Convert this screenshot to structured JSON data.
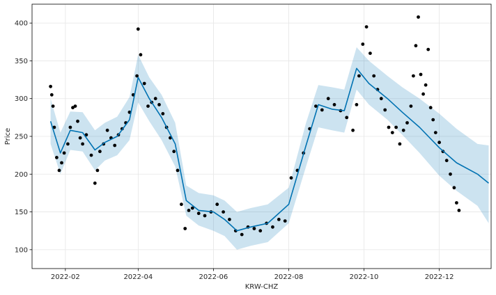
{
  "chart_data": {
    "type": "line",
    "title": "",
    "xlabel": "KRW-CHZ",
    "ylabel": "Price",
    "x_ticks": [
      "2022-02",
      "2022-04",
      "2022-06",
      "2022-08",
      "2022-10",
      "2022-12"
    ],
    "y_ticks": [
      100,
      150,
      200,
      250,
      300,
      350,
      400
    ],
    "xlim": [
      "2022-01-05",
      "2023-01-12"
    ],
    "ylim": [
      75,
      425
    ],
    "grid": true,
    "legend": "none",
    "colors": {
      "forecast_line": "#0072B2",
      "uncertainty_band": "#0072B2",
      "observations": "#000000",
      "grid": "#e6e6e6"
    },
    "series": [
      {
        "kind": "forecast",
        "x": [
          "2022-01-20",
          "2022-01-28",
          "2022-02-05",
          "2022-02-15",
          "2022-02-25",
          "2022-03-05",
          "2022-03-15",
          "2022-03-25",
          "2022-04-01",
          "2022-04-10",
          "2022-04-20",
          "2022-05-01",
          "2022-05-10",
          "2022-05-20",
          "2022-06-01",
          "2022-06-10",
          "2022-06-20",
          "2022-07-01",
          "2022-07-15",
          "2022-08-01",
          "2022-08-15",
          "2022-08-25",
          "2022-09-05",
          "2022-09-15",
          "2022-09-25",
          "2022-10-05",
          "2022-10-20",
          "2022-11-01",
          "2022-11-15",
          "2022-12-01",
          "2022-12-15",
          "2023-01-01",
          "2023-01-10"
        ],
        "y": [
          270,
          228,
          258,
          255,
          232,
          242,
          250,
          272,
          328,
          300,
          275,
          240,
          165,
          152,
          150,
          140,
          125,
          130,
          135,
          160,
          238,
          292,
          286,
          284,
          340,
          320,
          300,
          282,
          262,
          235,
          215,
          200,
          188
        ]
      },
      {
        "kind": "uncertainty",
        "x": [
          "2022-01-20",
          "2022-01-28",
          "2022-02-05",
          "2022-02-15",
          "2022-02-25",
          "2022-03-05",
          "2022-03-15",
          "2022-03-25",
          "2022-04-01",
          "2022-04-10",
          "2022-04-20",
          "2022-05-01",
          "2022-05-10",
          "2022-05-20",
          "2022-06-01",
          "2022-06-10",
          "2022-06-20",
          "2022-07-01",
          "2022-07-15",
          "2022-08-01",
          "2022-08-15",
          "2022-08-25",
          "2022-09-05",
          "2022-09-15",
          "2022-09-25",
          "2022-10-05",
          "2022-10-20",
          "2022-11-01",
          "2022-11-15",
          "2022-12-01",
          "2022-12-15",
          "2023-01-01",
          "2023-01-10"
        ],
        "upper": [
          300,
          255,
          283,
          282,
          258,
          268,
          276,
          302,
          358,
          328,
          305,
          268,
          185,
          175,
          172,
          165,
          150,
          155,
          160,
          182,
          268,
          318,
          315,
          312,
          368,
          350,
          330,
          315,
          300,
          280,
          260,
          240,
          238
        ],
        "lower": [
          240,
          200,
          232,
          230,
          205,
          218,
          225,
          245,
          295,
          270,
          245,
          210,
          145,
          132,
          125,
          118,
          100,
          105,
          110,
          135,
          210,
          262,
          258,
          255,
          312,
          292,
          272,
          252,
          228,
          198,
          178,
          158,
          135
        ]
      },
      {
        "kind": "observed",
        "x": [
          "2022-01-20",
          "2022-01-21",
          "2022-01-22",
          "2022-01-23",
          "2022-01-25",
          "2022-01-27",
          "2022-01-29",
          "2022-01-31",
          "2022-02-03",
          "2022-02-05",
          "2022-02-07",
          "2022-02-09",
          "2022-02-11",
          "2022-02-13",
          "2022-02-15",
          "2022-02-18",
          "2022-02-22",
          "2022-02-25",
          "2022-02-27",
          "2022-03-01",
          "2022-03-04",
          "2022-03-07",
          "2022-03-10",
          "2022-03-13",
          "2022-03-16",
          "2022-03-19",
          "2022-03-22",
          "2022-03-25",
          "2022-03-28",
          "2022-03-31",
          "2022-04-01",
          "2022-04-03",
          "2022-04-06",
          "2022-04-09",
          "2022-04-12",
          "2022-04-15",
          "2022-04-18",
          "2022-04-21",
          "2022-04-24",
          "2022-04-27",
          "2022-04-30",
          "2022-05-03",
          "2022-05-06",
          "2022-05-09",
          "2022-05-12",
          "2022-05-15",
          "2022-05-20",
          "2022-05-25",
          "2022-05-30",
          "2022-06-04",
          "2022-06-09",
          "2022-06-14",
          "2022-06-19",
          "2022-06-24",
          "2022-06-29",
          "2022-07-04",
          "2022-07-09",
          "2022-07-14",
          "2022-07-19",
          "2022-07-24",
          "2022-07-29",
          "2022-08-03",
          "2022-08-08",
          "2022-08-13",
          "2022-08-18",
          "2022-08-23",
          "2022-08-28",
          "2022-09-02",
          "2022-09-07",
          "2022-09-12",
          "2022-09-17",
          "2022-09-22",
          "2022-09-25",
          "2022-09-27",
          "2022-09-30",
          "2022-10-03",
          "2022-10-06",
          "2022-10-09",
          "2022-10-12",
          "2022-10-15",
          "2022-10-18",
          "2022-10-21",
          "2022-10-24",
          "2022-10-27",
          "2022-10-30",
          "2022-11-02",
          "2022-11-05",
          "2022-11-08",
          "2022-11-10",
          "2022-11-12",
          "2022-11-14",
          "2022-11-16",
          "2022-11-18",
          "2022-11-20",
          "2022-11-22",
          "2022-11-24",
          "2022-11-26",
          "2022-11-28",
          "2022-12-01",
          "2022-12-04",
          "2022-12-07",
          "2022-12-10",
          "2022-12-13",
          "2022-12-15",
          "2022-12-17"
        ],
        "y": [
          316,
          305,
          290,
          262,
          222,
          205,
          215,
          228,
          240,
          262,
          288,
          290,
          270,
          248,
          240,
          252,
          225,
          188,
          205,
          230,
          240,
          258,
          248,
          238,
          252,
          260,
          268,
          282,
          305,
          330,
          392,
          358,
          320,
          290,
          295,
          300,
          292,
          280,
          262,
          248,
          230,
          205,
          160,
          128,
          152,
          155,
          148,
          145,
          150,
          160,
          150,
          140,
          125,
          120,
          130,
          128,
          125,
          135,
          130,
          140,
          138,
          195,
          205,
          228,
          260,
          290,
          285,
          300,
          292,
          284,
          275,
          258,
          292,
          330,
          372,
          395,
          360,
          330,
          312,
          300,
          285,
          262,
          255,
          262,
          240,
          258,
          268,
          290,
          330,
          370,
          408,
          332,
          306,
          318,
          365,
          288,
          272,
          255,
          242,
          230,
          218,
          200,
          182,
          162,
          152
        ]
      }
    ]
  }
}
